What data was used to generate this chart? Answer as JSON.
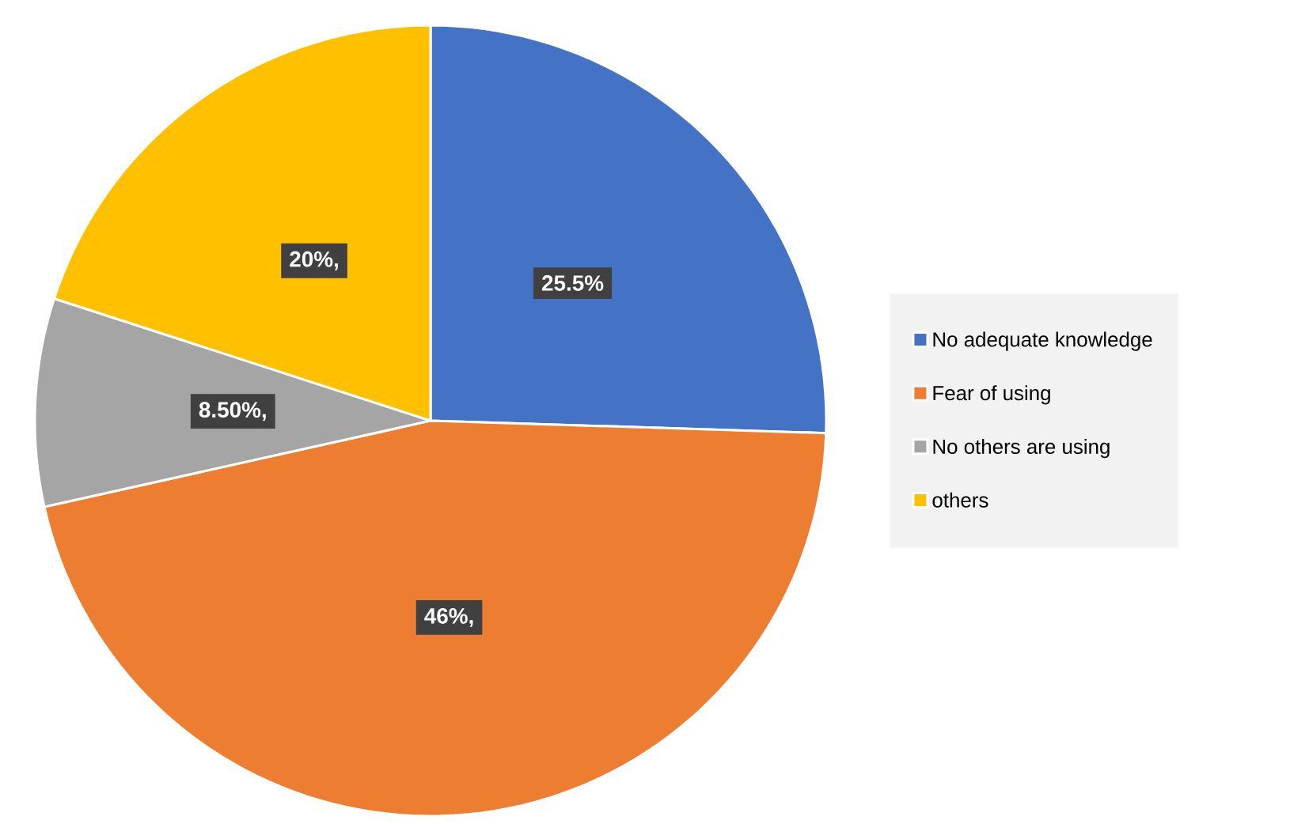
{
  "chart_data": {
    "type": "pie",
    "categories": [
      "No adequate knowledge",
      "Fear of using",
      "No others are using",
      "others"
    ],
    "values": [
      25.5,
      46,
      8.5,
      20
    ],
    "colors": [
      "#4472c4",
      "#ed7d31",
      "#a5a5a5",
      "#ffc000"
    ],
    "value_labels": [
      "25.5%",
      "46%,",
      "8.50%,",
      "20%,"
    ],
    "legend": "right"
  }
}
